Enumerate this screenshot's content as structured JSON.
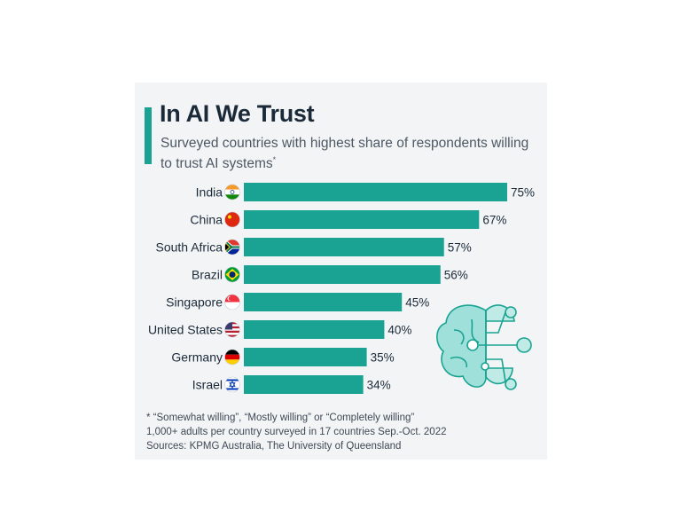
{
  "title": "In AI We Trust",
  "subtitle": "Surveyed countries with highest share of respondents willing to trust AI systems",
  "subtitle_mark": "*",
  "footnotes": {
    "line1": "* “Somewhat willing”, “Mostly willing” or “Completely willing”",
    "line2": "1,000+ adults per country surveyed in 17 countries Sep.-Oct. 2022",
    "line3": "Sources: KPMG Australia, The University of Queensland"
  },
  "colors": {
    "accent": "#1aa392",
    "bar": "#1aa392",
    "text": "#1b2a38",
    "background": "#f2f4f6"
  },
  "illustration": "brain-circuit-icon",
  "chart_data": {
    "type": "bar",
    "orientation": "horizontal",
    "categories": [
      "India",
      "China",
      "South Africa",
      "Brazil",
      "Singapore",
      "United States",
      "Germany",
      "Israel"
    ],
    "flags": [
      "india-flag-icon",
      "china-flag-icon",
      "south-africa-flag-icon",
      "brazil-flag-icon",
      "singapore-flag-icon",
      "united-states-flag-icon",
      "germany-flag-icon",
      "israel-flag-icon"
    ],
    "values": [
      75,
      67,
      57,
      56,
      45,
      40,
      35,
      34
    ],
    "value_labels": [
      "75%",
      "67%",
      "57%",
      "56%",
      "45%",
      "40%",
      "35%",
      "34%"
    ],
    "xlim": [
      0,
      75
    ],
    "grid": false,
    "legend": "none"
  }
}
